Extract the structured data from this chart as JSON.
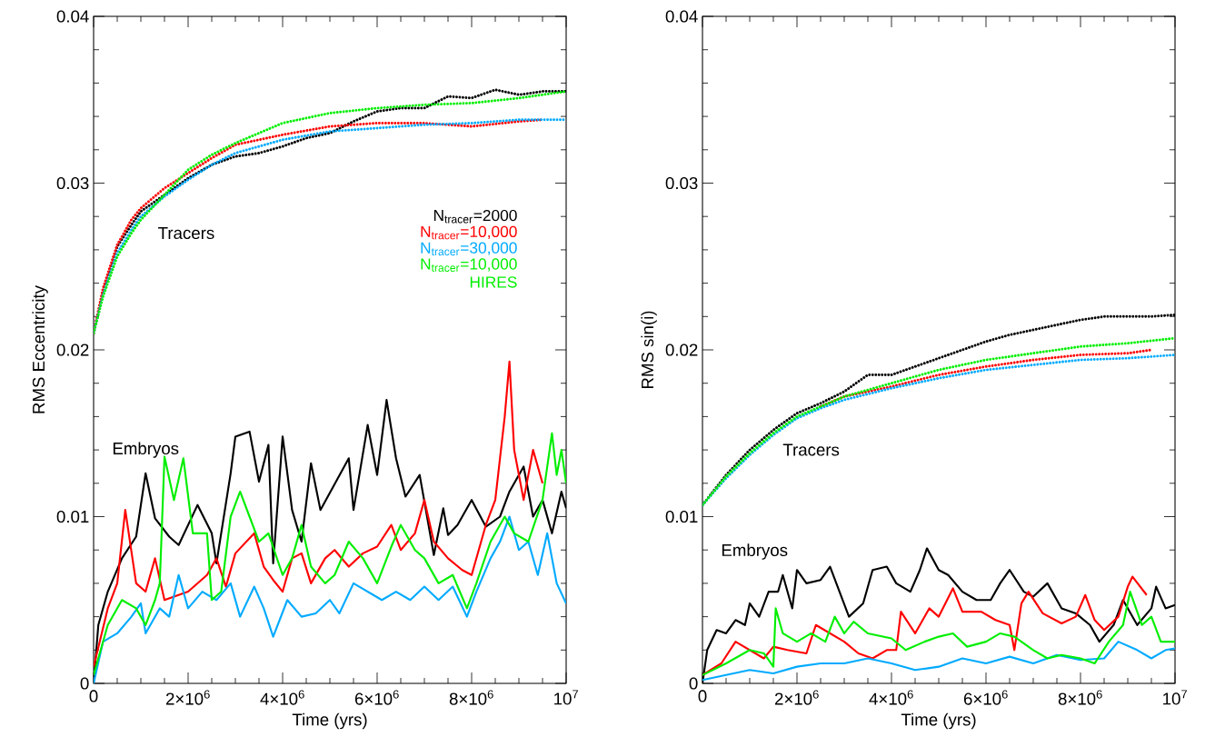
{
  "chart_data": [
    {
      "type": "line",
      "xlabel": "Time (yrs)",
      "ylabel": "RMS Eccentricity",
      "xlim": [
        0,
        10000000.0
      ],
      "ylim": [
        0,
        0.04
      ],
      "xticks": [
        {
          "value": 0,
          "label": "0"
        },
        {
          "value": 2000000.0,
          "label": "2×10$^{6}$"
        },
        {
          "value": 4000000.0,
          "label": "4×10$^{6}$"
        },
        {
          "value": 6000000.0,
          "label": "6×10$^{6}$"
        },
        {
          "value": 8000000.0,
          "label": "8×10$^{6}$"
        },
        {
          "value": 10000000.0,
          "label": "10$^{7}$"
        }
      ],
      "yticks": [
        0,
        0.01,
        0.02,
        0.03,
        0.04
      ],
      "grid": false,
      "legend": "right",
      "annotations": [
        "Tracers",
        "Embryos"
      ],
      "series": [
        {
          "name": "N$_{tracer}$=2000",
          "color": "#000000",
          "line_style": "dotted",
          "x": [
            0,
            200000.0,
            500000.0,
            800000.0,
            1000000.0,
            1500000.0,
            2000000.0,
            2500000.0,
            3000000.0,
            3500000.0,
            4000000.0,
            4500000.0,
            5000000.0,
            5500000.0,
            6000000.0,
            6500000.0,
            7000000.0,
            7500000.0,
            8000000.0,
            8500000.0,
            9000000.0,
            9500000.0,
            10000000.0
          ],
          "values": [
            0.021,
            0.0235,
            0.0262,
            0.0275,
            0.0283,
            0.0293,
            0.0303,
            0.0311,
            0.0316,
            0.0318,
            0.0322,
            0.0327,
            0.033,
            0.0337,
            0.0343,
            0.0345,
            0.0345,
            0.0352,
            0.0351,
            0.0356,
            0.0353,
            0.0355,
            0.0355
          ]
        },
        {
          "name": "N$_{tracer}$=10,000",
          "color": "#ff0000",
          "line_style": "dotted",
          "x": [
            0,
            200000.0,
            500000.0,
            800000.0,
            1000000.0,
            1500000.0,
            2000000.0,
            2500000.0,
            3000000.0,
            4000000.0,
            5000000.0,
            6000000.0,
            7000000.0,
            8000000.0,
            9000000.0,
            9500000.0
          ],
          "values": [
            0.021,
            0.0237,
            0.0263,
            0.0278,
            0.0285,
            0.0297,
            0.0306,
            0.0315,
            0.0323,
            0.0329,
            0.0334,
            0.0336,
            0.0336,
            0.0334,
            0.0337,
            0.0338
          ]
        },
        {
          "name": "N$_{tracer}$=30,000",
          "color": "#00aaff",
          "line_style": "dotted",
          "x": [
            0,
            200000.0,
            500000.0,
            800000.0,
            1000000.0,
            1500000.0,
            2000000.0,
            2500000.0,
            3000000.0,
            4000000.0,
            5000000.0,
            6000000.0,
            7000000.0,
            8000000.0,
            9000000.0,
            10000000.0
          ],
          "values": [
            0.021,
            0.0233,
            0.0258,
            0.0272,
            0.028,
            0.0292,
            0.0302,
            0.0311,
            0.0318,
            0.0326,
            0.0331,
            0.0333,
            0.0335,
            0.0336,
            0.0338,
            0.0338
          ]
        },
        {
          "name": "N$_{tracer}$=10,000 HIRES",
          "color": "#00ee00",
          "line_style": "dotted",
          "x": [
            0,
            200000.0,
            500000.0,
            800000.0,
            1000000.0,
            1500000.0,
            2000000.0,
            2500000.0,
            3000000.0,
            4000000.0,
            5000000.0,
            6000000.0,
            7000000.0,
            8000000.0,
            9000000.0,
            10000000.0
          ],
          "values": [
            0.021,
            0.0232,
            0.0256,
            0.027,
            0.0278,
            0.0293,
            0.0308,
            0.0317,
            0.0324,
            0.0336,
            0.0342,
            0.0345,
            0.0347,
            0.0348,
            0.0351,
            0.0355
          ]
        },
        {
          "color": "#000000",
          "line_style": "solid",
          "x": [
            0,
            100000.0,
            300000.0,
            600000.0,
            900000.0,
            1100000.0,
            1300000.0,
            1600000.0,
            1800000.0,
            2200000.0,
            2500000.0,
            2600000.0,
            2900000.0,
            3000000.0,
            3300000.0,
            3500000.0,
            3700000.0,
            3800000.0,
            4000000.0,
            4200000.0,
            4400000.0,
            4600000.0,
            4800000.0,
            5400000.0,
            5500000.0,
            5800000.0,
            6000000.0,
            6200000.0,
            6400000.0,
            6600000.0,
            6900000.0,
            7200000.0,
            7400000.0,
            7500000.0,
            7700000.0,
            8000000.0,
            8300000.0,
            8600000.0,
            8800000.0,
            9100000.0,
            9300000.0,
            9500000.0,
            9700000.0,
            9900000.0,
            10000000.0
          ],
          "values": [
            0,
            0.0035,
            0.0055,
            0.0075,
            0.0088,
            0.0126,
            0.0099,
            0.0088,
            0.0083,
            0.0107,
            0.009,
            0.0072,
            0.0126,
            0.0148,
            0.0151,
            0.0121,
            0.0143,
            0.0072,
            0.0148,
            0.0104,
            0.0085,
            0.0132,
            0.0104,
            0.0135,
            0.0104,
            0.0155,
            0.0125,
            0.017,
            0.0135,
            0.0112,
            0.0125,
            0.0077,
            0.0105,
            0.0089,
            0.0095,
            0.011,
            0.0094,
            0.01,
            0.0115,
            0.013,
            0.01,
            0.011,
            0.009,
            0.0115,
            0.0105
          ]
        },
        {
          "color": "#ff0000",
          "line_style": "solid",
          "x": [
            0,
            300000.0,
            500000.0,
            670000.0,
            900000.0,
            1100000.0,
            1300000.0,
            1500000.0,
            2000000.0,
            2400000.0,
            2600000.0,
            2800000.0,
            3000000.0,
            3400000.0,
            3600000.0,
            3800000.0,
            4000000.0,
            4200000.0,
            4400000.0,
            4600000.0,
            4900000.0,
            5100000.0,
            5400000.0,
            5700000.0,
            6000000.0,
            6300000.0,
            6500000.0,
            6800000.0,
            7000000.0,
            7200000.0,
            7500000.0,
            7800000.0,
            8000000.0,
            8300000.0,
            8500000.0,
            8700000.0,
            8800000.0,
            8900000.0,
            9100000.0,
            9300000.0,
            9500000.0
          ],
          "values": [
            0.001,
            0.0045,
            0.006,
            0.0104,
            0.006,
            0.0055,
            0.0075,
            0.005,
            0.0055,
            0.0065,
            0.0075,
            0.0058,
            0.0078,
            0.009,
            0.007,
            0.0062,
            0.0055,
            0.0075,
            0.0078,
            0.006,
            0.0075,
            0.008,
            0.007,
            0.0078,
            0.0082,
            0.0095,
            0.008,
            0.009,
            0.011,
            0.0085,
            0.0075,
            0.0068,
            0.0065,
            0.0095,
            0.011,
            0.016,
            0.0193,
            0.014,
            0.011,
            0.014,
            0.012
          ]
        },
        {
          "color": "#00aaff",
          "line_style": "solid",
          "x": [
            0,
            200000.0,
            500000.0,
            800000.0,
            1000000.0,
            1100000.0,
            1400000.0,
            1600000.0,
            1800000.0,
            2000000.0,
            2300000.0,
            2600000.0,
            2900000.0,
            3100000.0,
            3400000.0,
            3600000.0,
            3800000.0,
            4100000.0,
            4400000.0,
            4700000.0,
            5000000.0,
            5200000.0,
            5500000.0,
            5800000.0,
            6100000.0,
            6400000.0,
            6700000.0,
            7000000.0,
            7300000.0,
            7600000.0,
            7900000.0,
            8100000.0,
            8400000.0,
            8600000.0,
            8800000.0,
            9000000.0,
            9200000.0,
            9400000.0,
            9600000.0,
            9800000.0,
            10000000.0
          ],
          "values": [
            0,
            0.0025,
            0.003,
            0.004,
            0.0048,
            0.003,
            0.0045,
            0.004,
            0.0065,
            0.0045,
            0.0055,
            0.005,
            0.006,
            0.004,
            0.0058,
            0.0045,
            0.0028,
            0.005,
            0.004,
            0.0042,
            0.005,
            0.0042,
            0.006,
            0.0055,
            0.005,
            0.0055,
            0.005,
            0.0058,
            0.005,
            0.0058,
            0.004,
            0.0055,
            0.0075,
            0.0085,
            0.01,
            0.008,
            0.0085,
            0.0065,
            0.009,
            0.006,
            0.0048
          ]
        },
        {
          "color": "#00ee00",
          "line_style": "solid",
          "x": [
            0,
            300000.0,
            600000.0,
            900000.0,
            1100000.0,
            1300000.0,
            1400000.0,
            1500000.0,
            1700000.0,
            1900000.0,
            2100000.0,
            2400000.0,
            2500000.0,
            2700000.0,
            2900000.0,
            3100000.0,
            3300000.0,
            3500000.0,
            3700000.0,
            4000000.0,
            4200000.0,
            4400000.0,
            4600000.0,
            4900000.0,
            5100000.0,
            5400000.0,
            5700000.0,
            6000000.0,
            6300000.0,
            6500000.0,
            6800000.0,
            7000000.0,
            7300000.0,
            7600000.0,
            7900000.0,
            8100000.0,
            8400000.0,
            8700000.0,
            8900000.0,
            9200000.0,
            9500000.0,
            9700000.0,
            9800000.0,
            9900000.0,
            10000000.0
          ],
          "values": [
            0.0005,
            0.0035,
            0.005,
            0.0045,
            0.0035,
            0.005,
            0.006,
            0.0136,
            0.011,
            0.0135,
            0.009,
            0.009,
            0.005,
            0.0055,
            0.01,
            0.0115,
            0.01,
            0.0085,
            0.009,
            0.0065,
            0.0075,
            0.0095,
            0.007,
            0.006,
            0.0065,
            0.0085,
            0.0075,
            0.006,
            0.0082,
            0.0095,
            0.008,
            0.0075,
            0.006,
            0.0065,
            0.0045,
            0.006,
            0.0085,
            0.01,
            0.009,
            0.0085,
            0.011,
            0.015,
            0.0125,
            0.014,
            0.012
          ]
        }
      ]
    },
    {
      "type": "line",
      "xlabel": "Time (yrs)",
      "ylabel": "RMS sin(i)",
      "xlim": [
        0,
        10000000.0
      ],
      "ylim": [
        0,
        0.04
      ],
      "xticks": [
        {
          "value": 0,
          "label": "0"
        },
        {
          "value": 2000000.0,
          "label": "2×10$^{6}$"
        },
        {
          "value": 4000000.0,
          "label": "4×10$^{6}$"
        },
        {
          "value": 6000000.0,
          "label": "6×10$^{6}$"
        },
        {
          "value": 8000000.0,
          "label": "8×10$^{6}$"
        },
        {
          "value": 10000000.0,
          "label": "10$^{7}$"
        }
      ],
      "yticks": [
        0,
        0.01,
        0.02,
        0.03,
        0.04
      ],
      "grid": false,
      "annotations": [
        "Tracers",
        "Embryos"
      ],
      "series": [
        {
          "color": "#000000",
          "line_style": "dotted",
          "x": [
            0,
            500000.0,
            1000000.0,
            1500000.0,
            2000000.0,
            2500000.0,
            3000000.0,
            3500000.0,
            4000000.0,
            4500000.0,
            5000000.0,
            5500000.0,
            6000000.0,
            6500000.0,
            7000000.0,
            7500000.0,
            8000000.0,
            8500000.0,
            9000000.0,
            9500000.0,
            10000000.0
          ],
          "values": [
            0.0107,
            0.0125,
            0.014,
            0.0152,
            0.0162,
            0.0168,
            0.0175,
            0.0185,
            0.0185,
            0.019,
            0.0195,
            0.02,
            0.0205,
            0.0209,
            0.0212,
            0.0215,
            0.0218,
            0.022,
            0.022,
            0.022,
            0.0221
          ]
        },
        {
          "color": "#ff0000",
          "line_style": "dotted",
          "x": [
            2500000.0,
            3000000.0,
            4000000.0,
            5000000.0,
            6000000.0,
            7000000.0,
            8000000.0,
            9000000.0,
            9500000.0
          ],
          "values": [
            0.0166,
            0.0172,
            0.0178,
            0.0185,
            0.019,
            0.0194,
            0.0197,
            0.0198,
            0.02
          ]
        },
        {
          "color": "#00aaff",
          "line_style": "dotted",
          "x": [
            0,
            500000.0,
            1000000.0,
            1500000.0,
            2000000.0,
            2500000.0,
            3000000.0,
            4000000.0,
            5000000.0,
            6000000.0,
            7000000.0,
            8000000.0,
            9000000.0,
            10000000.0
          ],
          "values": [
            0.0107,
            0.0123,
            0.0137,
            0.0149,
            0.0159,
            0.0165,
            0.017,
            0.0177,
            0.0183,
            0.0188,
            0.0191,
            0.0194,
            0.0195,
            0.0197
          ]
        },
        {
          "color": "#00ee00",
          "line_style": "dotted",
          "x": [
            0,
            500000.0,
            1000000.0,
            1500000.0,
            2000000.0,
            2500000.0,
            3000000.0,
            4000000.0,
            5000000.0,
            6000000.0,
            7000000.0,
            8000000.0,
            9000000.0,
            10000000.0
          ],
          "values": [
            0.0107,
            0.0124,
            0.0138,
            0.015,
            0.016,
            0.0166,
            0.0172,
            0.018,
            0.0188,
            0.0194,
            0.0198,
            0.0202,
            0.0204,
            0.0207
          ]
        },
        {
          "color": "#000000",
          "line_style": "solid",
          "x": [
            0,
            100000.0,
            300000.0,
            500000.0,
            700000.0,
            900000.0,
            1000000.0,
            1200000.0,
            1400000.0,
            1600000.0,
            1700000.0,
            1900000.0,
            2000000.0,
            2200000.0,
            2500000.0,
            2700000.0,
            2900000.0,
            3100000.0,
            3400000.0,
            3600000.0,
            3900000.0,
            4100000.0,
            4400000.0,
            4600000.0,
            4750000.0,
            5000000.0,
            5200000.0,
            5500000.0,
            5800000.0,
            6100000.0,
            6300000.0,
            6500000.0,
            6800000.0,
            7000000.0,
            7300000.0,
            7600000.0,
            7900000.0,
            8200000.0,
            8400000.0,
            8700000.0,
            8900000.0,
            9200000.0,
            9500000.0,
            9600000.0,
            9800000.0,
            10000000.0
          ],
          "values": [
            0,
            0.002,
            0.0032,
            0.003,
            0.0038,
            0.0035,
            0.0048,
            0.004,
            0.0055,
            0.0055,
            0.0065,
            0.0045,
            0.0068,
            0.006,
            0.0062,
            0.007,
            0.0055,
            0.004,
            0.0048,
            0.0068,
            0.007,
            0.006,
            0.0055,
            0.0068,
            0.0081,
            0.0068,
            0.0065,
            0.0055,
            0.005,
            0.005,
            0.006,
            0.0068,
            0.0055,
            0.0052,
            0.006,
            0.0045,
            0.0042,
            0.0035,
            0.0025,
            0.0035,
            0.005,
            0.0035,
            0.0045,
            0.0058,
            0.0045,
            0.0047
          ]
        },
        {
          "color": "#ff0000",
          "line_style": "solid",
          "x": [
            0,
            400000.0,
            700000.0,
            1000000.0,
            1300000.0,
            1500000.0,
            1800000.0,
            2200000.0,
            2400000.0,
            2700000.0,
            3000000.0,
            3300000.0,
            3600000.0,
            3900000.0,
            4100000.0,
            4200000.0,
            4500000.0,
            4800000.0,
            5000000.0,
            5300000.0,
            5500000.0,
            5900000.0,
            6200000.0,
            6500000.0,
            6600000.0,
            6750000.0,
            6900000.0,
            7200000.0,
            7600000.0,
            7900000.0,
            8100000.0,
            8300000.0,
            8500000.0,
            8800000.0,
            9000000.0,
            9100000.0,
            9400000.0
          ],
          "values": [
            0.0005,
            0.0012,
            0.0025,
            0.002,
            0.0015,
            0.0022,
            0.002,
            0.0018,
            0.0035,
            0.003,
            0.0025,
            0.0018,
            0.0015,
            0.002,
            0.002,
            0.0043,
            0.003,
            0.0045,
            0.004,
            0.0057,
            0.0043,
            0.0043,
            0.0038,
            0.0035,
            0.002,
            0.0048,
            0.0055,
            0.0042,
            0.0036,
            0.004,
            0.0053,
            0.0038,
            0.0032,
            0.004,
            0.0058,
            0.0064,
            0.0053
          ]
        },
        {
          "color": "#00aaff",
          "line_style": "solid",
          "x": [
            0,
            500000.0,
            1000000.0,
            1500000.0,
            2000000.0,
            2500000.0,
            3000000.0,
            3500000.0,
            4000000.0,
            4500000.0,
            5000000.0,
            5500000.0,
            6000000.0,
            6500000.0,
            7000000.0,
            7500000.0,
            8000000.0,
            8500000.0,
            8800000.0,
            9200000.0,
            9500000.0,
            9800000.0,
            10000000.0
          ],
          "values": [
            0.0002,
            0.0005,
            0.0008,
            0.0006,
            0.001,
            0.0012,
            0.0012,
            0.0015,
            0.0012,
            0.0008,
            0.001,
            0.0015,
            0.0012,
            0.0016,
            0.0012,
            0.0017,
            0.0014,
            0.0015,
            0.0025,
            0.002,
            0.0015,
            0.002,
            0.0021
          ]
        },
        {
          "color": "#00ee00",
          "line_style": "solid",
          "x": [
            0,
            500000.0,
            1000000.0,
            1300000.0,
            1500000.0,
            1550000.0,
            1700000.0,
            2000000.0,
            2300000.0,
            2600000.0,
            2800000.0,
            3000000.0,
            3200000.0,
            3500000.0,
            4000000.0,
            4300000.0,
            4700000.0,
            5000000.0,
            5300000.0,
            5600000.0,
            6000000.0,
            6300000.0,
            6600000.0,
            7000000.0,
            7300000.0,
            7600000.0,
            8000000.0,
            8300000.0,
            8600000.0,
            8900000.0,
            9050000.0,
            9300000.0,
            9500000.0,
            9700000.0,
            10000000.0
          ],
          "values": [
            0.0005,
            0.0012,
            0.002,
            0.0018,
            0.001,
            0.0045,
            0.003,
            0.0025,
            0.003,
            0.0025,
            0.004,
            0.003,
            0.0037,
            0.003,
            0.0027,
            0.002,
            0.0025,
            0.0028,
            0.003,
            0.0022,
            0.0025,
            0.003,
            0.0028,
            0.002,
            0.0015,
            0.0017,
            0.0015,
            0.0012,
            0.0025,
            0.0035,
            0.0055,
            0.0035,
            0.004,
            0.0025,
            0.0025
          ]
        }
      ]
    }
  ]
}
